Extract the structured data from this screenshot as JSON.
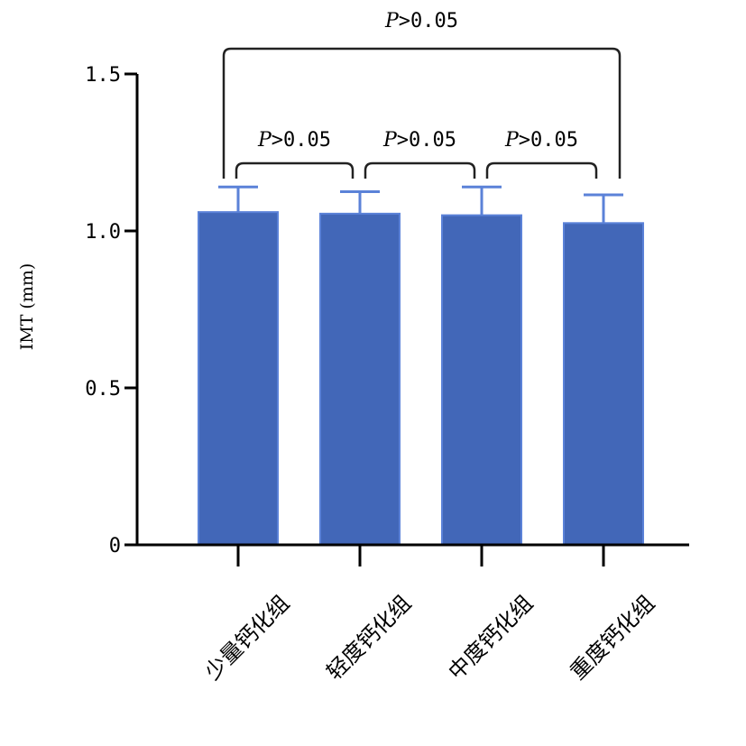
{
  "chart_data": {
    "type": "bar",
    "categories": [
      "少量钙化组",
      "轻度钙化组",
      "中度钙化组",
      "重度钙化组"
    ],
    "values": [
      1.06,
      1.055,
      1.05,
      1.025
    ],
    "errors": [
      0.08,
      0.07,
      0.09,
      0.09
    ],
    "ylabel": "IMT (mm)",
    "ylim": [
      0,
      1.5
    ],
    "yticks": [
      0,
      0.5,
      1.0,
      1.5
    ],
    "ytick_labels": [
      "0",
      "0.5",
      "1.0",
      "1.5"
    ],
    "grid": false,
    "bar_color": "#4267b8",
    "bar_edge_color": "#5b82d8",
    "comparisons": [
      {
        "from": 0,
        "to": 1,
        "p_prefix": "P",
        "p_suffix": ">0.05",
        "level": 0
      },
      {
        "from": 1,
        "to": 2,
        "p_prefix": "P",
        "p_suffix": ">0.05",
        "level": 0
      },
      {
        "from": 2,
        "to": 3,
        "p_prefix": "P",
        "p_suffix": ">0.05",
        "level": 0
      },
      {
        "from": 0,
        "to": 3,
        "p_prefix": "P",
        "p_suffix": ">0.05",
        "level": 1
      }
    ]
  }
}
